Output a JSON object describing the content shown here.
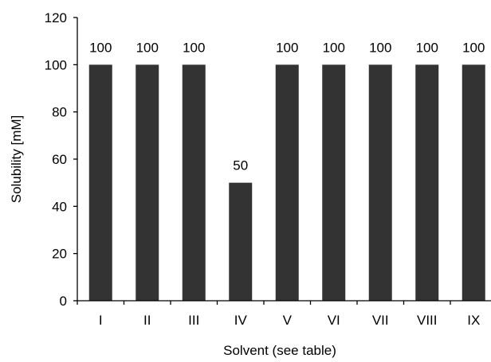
{
  "chart_data": {
    "type": "bar",
    "title": "",
    "xlabel": "Solvent (see table)",
    "ylabel": "Solubility [mM]",
    "categories": [
      "I",
      "II",
      "III",
      "IV",
      "V",
      "VI",
      "VII",
      "VIII",
      "IX"
    ],
    "values": [
      100,
      100,
      100,
      50,
      100,
      100,
      100,
      100,
      100
    ],
    "data_labels": [
      "100",
      "100",
      "100",
      "50",
      "100",
      "100",
      "100",
      "100",
      "100"
    ],
    "ylim": [
      0,
      120
    ],
    "yticks": [
      0,
      20,
      40,
      60,
      80,
      100,
      120
    ],
    "grid": false,
    "legend": "none",
    "bar_color": "#333333"
  }
}
